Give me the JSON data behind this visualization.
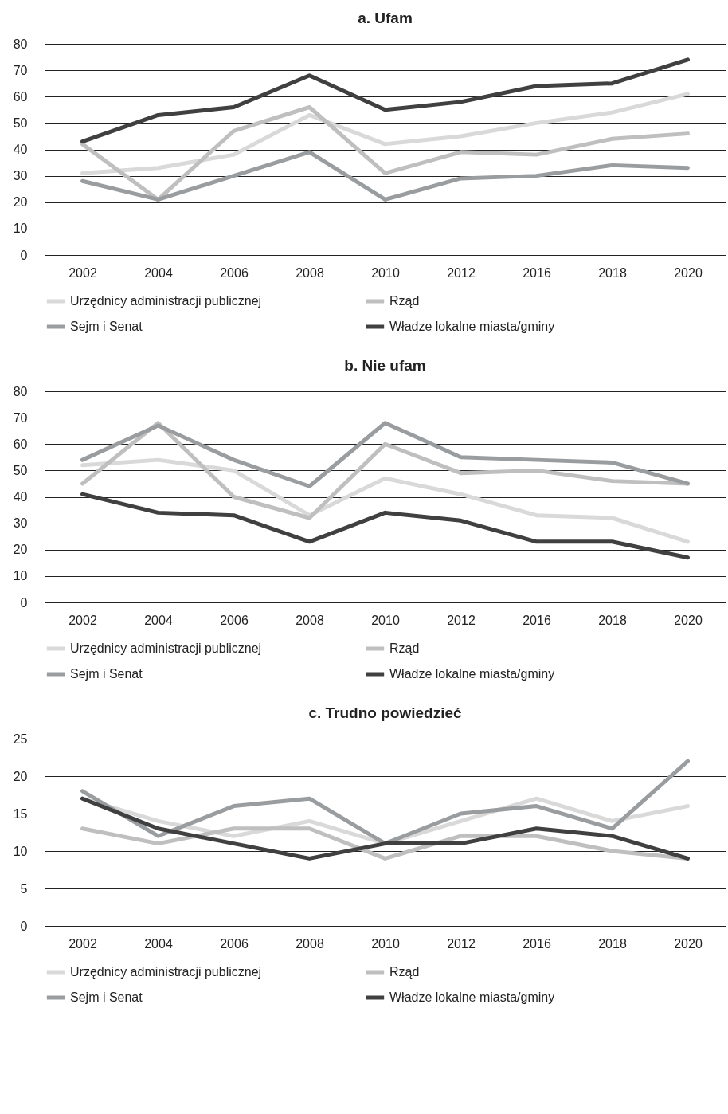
{
  "chart_data": [
    {
      "type": "line",
      "title": "a. Ufam",
      "categories": [
        "2002",
        "2004",
        "2006",
        "2008",
        "2010",
        "2012",
        "2016",
        "2018",
        "2020"
      ],
      "ylim": [
        0,
        80
      ],
      "yticks": [
        0,
        10,
        20,
        30,
        40,
        50,
        60,
        70,
        80
      ],
      "grid": "y",
      "legend": "bottom",
      "marker": "none",
      "line_style": "solid",
      "series": [
        {
          "name": "Urzędnicy administracji publicznej",
          "color": "#d9d9d9",
          "values": [
            31,
            33,
            38,
            53,
            42,
            45,
            50,
            54,
            61
          ]
        },
        {
          "name": "Rząd",
          "color": "#bfbfbf",
          "values": [
            42,
            21,
            47,
            56,
            31,
            39,
            38,
            44,
            46
          ]
        },
        {
          "name": "Sejm i Senat",
          "color": "#9a9da0",
          "values": [
            28,
            21,
            30,
            39,
            21,
            29,
            30,
            34,
            33
          ]
        },
        {
          "name": "Władze lokalne miasta/gminy",
          "color": "#404040",
          "values": [
            43,
            53,
            56,
            68,
            55,
            58,
            64,
            65,
            74
          ]
        }
      ]
    },
    {
      "type": "line",
      "title": "b. Nie ufam",
      "categories": [
        "2002",
        "2004",
        "2006",
        "2008",
        "2010",
        "2012",
        "2016",
        "2018",
        "2020"
      ],
      "ylim": [
        0,
        80
      ],
      "yticks": [
        0,
        10,
        20,
        30,
        40,
        50,
        60,
        70,
        80
      ],
      "grid": "y",
      "legend": "bottom",
      "marker": "none",
      "line_style": "solid",
      "series": [
        {
          "name": "Urzędnicy administracji publicznej",
          "color": "#d9d9d9",
          "values": [
            52,
            54,
            50,
            33,
            47,
            41,
            33,
            32,
            23
          ]
        },
        {
          "name": "Rząd",
          "color": "#bfbfbf",
          "values": [
            45,
            68,
            40,
            32,
            60,
            49,
            50,
            46,
            45
          ]
        },
        {
          "name": "Sejm i Senat",
          "color": "#9a9da0",
          "values": [
            54,
            67,
            54,
            44,
            68,
            55,
            54,
            53,
            45
          ]
        },
        {
          "name": "Władze lokalne miasta/gminy",
          "color": "#404040",
          "values": [
            41,
            34,
            33,
            23,
            34,
            31,
            23,
            23,
            17
          ]
        }
      ]
    },
    {
      "type": "line",
      "title": "c. Trudno powiedzieć",
      "categories": [
        "2002",
        "2004",
        "2006",
        "2008",
        "2010",
        "2012",
        "2016",
        "2018",
        "2020"
      ],
      "ylim": [
        0,
        25
      ],
      "yticks": [
        0,
        5,
        10,
        15,
        20,
        25
      ],
      "grid": "y",
      "legend": "bottom",
      "marker": "none",
      "line_style": "solid",
      "series": [
        {
          "name": "Urzędnicy administracji publicznej",
          "color": "#d9d9d9",
          "values": [
            17,
            14,
            12,
            14,
            11,
            14,
            17,
            14,
            16
          ]
        },
        {
          "name": "Rząd",
          "color": "#bfbfbf",
          "values": [
            13,
            11,
            13,
            13,
            9,
            12,
            12,
            10,
            9
          ]
        },
        {
          "name": "Sejm i Senat",
          "color": "#9a9da0",
          "values": [
            18,
            12,
            16,
            17,
            11,
            15,
            16,
            13,
            22
          ]
        },
        {
          "name": "Władze lokalne miasta/gminy",
          "color": "#404040",
          "values": [
            17,
            13,
            11,
            9,
            11,
            11,
            13,
            12,
            9
          ]
        }
      ]
    }
  ]
}
